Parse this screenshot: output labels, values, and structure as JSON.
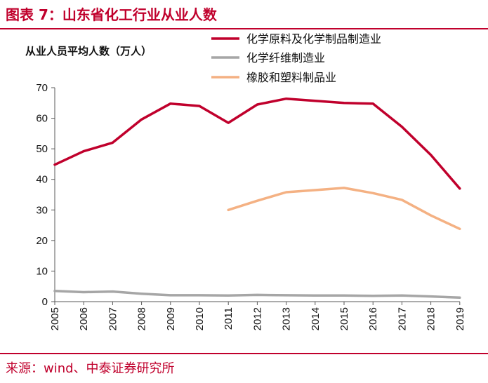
{
  "header": {
    "title": "图表 7：山东省化工行业从业人数"
  },
  "footer": {
    "source": "来源：wind、中泰证券研究所"
  },
  "chart_data": {
    "type": "line",
    "ylabel": "从业人员平均人数（万人）",
    "ylim": [
      0,
      70
    ],
    "yticks": [
      "0",
      "10",
      "20",
      "30",
      "40",
      "50",
      "60",
      "70"
    ],
    "x": [
      "2005",
      "2006",
      "2007",
      "2008",
      "2009",
      "2010",
      "2011",
      "2012",
      "2013",
      "2014",
      "2015",
      "2016",
      "2017",
      "2018",
      "2019"
    ],
    "grid": false,
    "legend_position": "top-right",
    "series": [
      {
        "name": "化学原料及化学制品制造业",
        "color": "#c0002c",
        "values": [
          44.8,
          49.2,
          52.0,
          59.6,
          64.8,
          64.0,
          58.5,
          64.5,
          66.4,
          65.7,
          65.0,
          64.8,
          57.2,
          48.0,
          37.0
        ]
      },
      {
        "name": "化学纤维制造业",
        "color": "#a6a6a6",
        "values": [
          3.5,
          3.1,
          3.3,
          2.6,
          2.1,
          2.1,
          2.0,
          2.2,
          2.1,
          2.0,
          2.0,
          1.9,
          2.0,
          1.7,
          1.3
        ]
      },
      {
        "name": "橡胶和塑料制品业",
        "color": "#f4b183",
        "values": [
          null,
          null,
          null,
          null,
          null,
          null,
          30.0,
          33.0,
          35.8,
          36.5,
          37.2,
          35.5,
          33.3,
          28.2,
          23.8
        ]
      }
    ]
  }
}
